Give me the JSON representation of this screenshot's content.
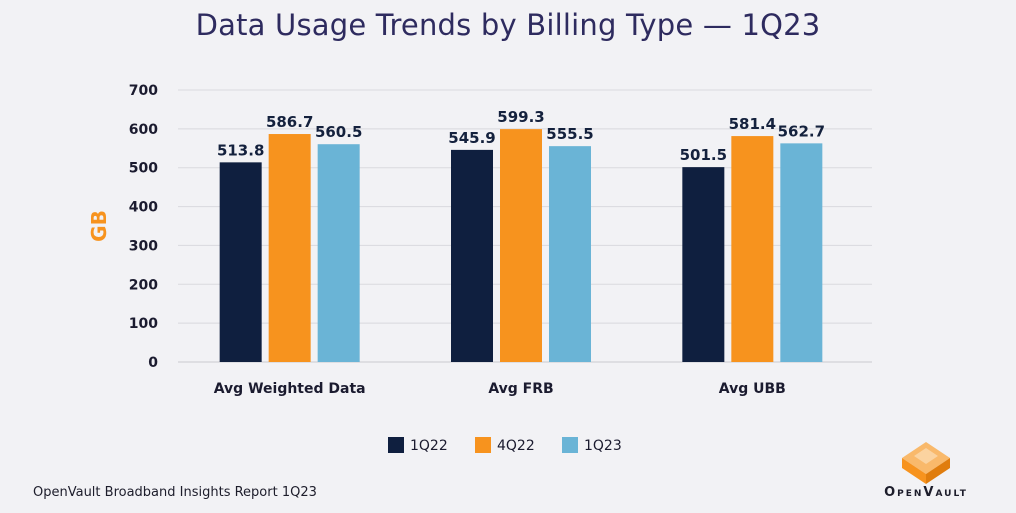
{
  "chart_data": {
    "type": "bar",
    "title": "Data Usage Trends by Billing Type — 1Q23",
    "ylabel": "GB",
    "xlabel": "",
    "categories": [
      "Avg Weighted Data",
      "Avg FRB",
      "Avg UBB"
    ],
    "series": [
      {
        "name": "1Q22",
        "color": "#0f1f3f",
        "values": [
          513.8,
          545.9,
          501.5
        ]
      },
      {
        "name": "4Q22",
        "color": "#f7931e",
        "values": [
          586.7,
          599.3,
          581.4
        ]
      },
      {
        "name": "1Q23",
        "color": "#6ab4d6",
        "values": [
          560.5,
          555.5,
          562.7
        ]
      }
    ],
    "ylim": [
      0,
      700
    ],
    "yticks": [
      0,
      100,
      200,
      300,
      400,
      500,
      600,
      700
    ],
    "grid": true,
    "legend": "bottom-center",
    "ylabel_color": "#f7931e"
  },
  "footer": {
    "source": "OpenVault Broadband Insights Report 1Q23",
    "brand": "OpenVault",
    "logo_icon": "openvault-v-logo-icon"
  }
}
